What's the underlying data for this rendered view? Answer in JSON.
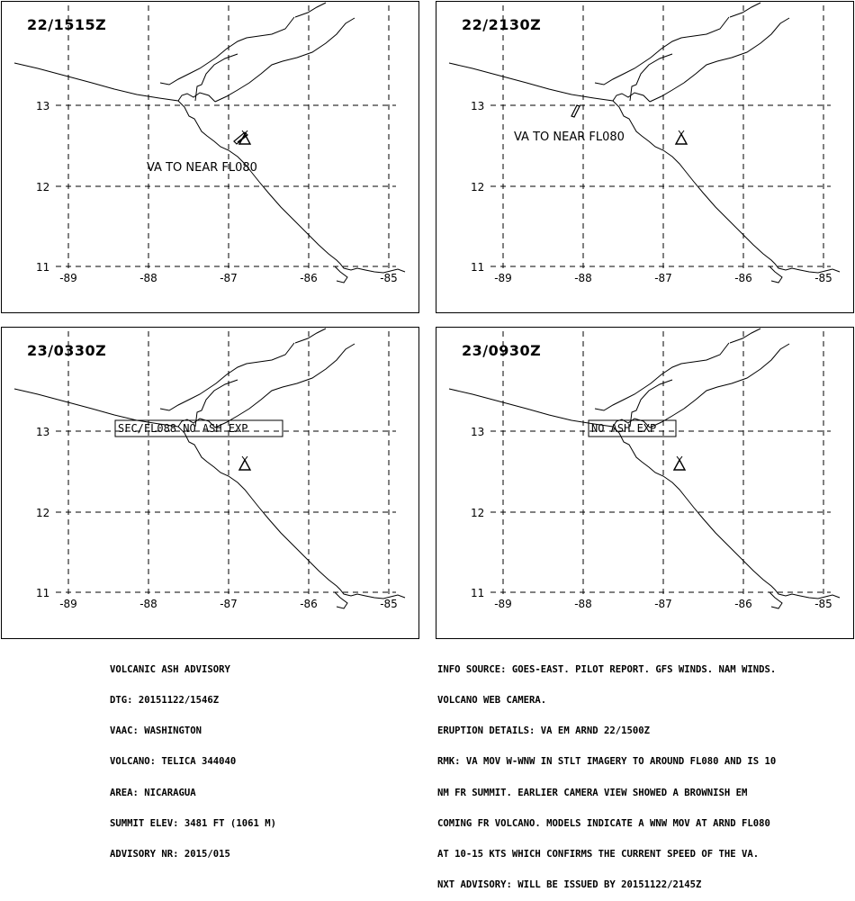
{
  "panels": [
    {
      "time": "22/1515Z",
      "annotation": {
        "kind": "text",
        "text": "VA TO NEAR FL080"
      },
      "ash_plume": true,
      "lat_labels": [
        "13",
        "12",
        "11"
      ],
      "lon_labels": [
        "-89",
        "-88",
        "-87",
        "-86",
        "-85"
      ]
    },
    {
      "time": "22/2130Z",
      "annotation": {
        "kind": "text",
        "text": "VA TO NEAR FL080"
      },
      "ash_plume": true,
      "lat_labels": [
        "13",
        "12",
        "11"
      ],
      "lon_labels": [
        "-89",
        "-88",
        "-87",
        "-86",
        "-85"
      ]
    },
    {
      "time": "23/0330Z",
      "annotation": {
        "kind": "box",
        "text": "SFC/FL088 NO ASH EXP"
      },
      "ash_plume": false,
      "lat_labels": [
        "13",
        "12",
        "11"
      ],
      "lon_labels": [
        "-89",
        "-88",
        "-87",
        "-86",
        "-85"
      ]
    },
    {
      "time": "23/0930Z",
      "annotation": {
        "kind": "box",
        "text": "NO ASH EXP"
      },
      "ash_plume": false,
      "lat_labels": [
        "13",
        "12",
        "11"
      ],
      "lon_labels": [
        "-89",
        "-88",
        "-87",
        "-86",
        "-85"
      ]
    }
  ],
  "volcano_symbol": "volcano-triangle-icon",
  "advisory_left": [
    "VOLCANIC ASH ADVISORY",
    "DTG: 20151122/1546Z",
    "VAAC: WASHINGTON",
    "VOLCANO: TELICA 344040",
    "AREA: NICARAGUA",
    "SUMMIT ELEV: 3481 FT (1061 M)",
    "ADVISORY NR: 2015/015"
  ],
  "advisory_right": [
    "INFO SOURCE: GOES-EAST. PILOT REPORT. GFS WINDS. NAM WINDS.",
    "VOLCANO WEB CAMERA.",
    "ERUPTION DETAILS: VA EM ARND 22/1500Z",
    "RMK: VA MOV W-WNW IN STLT IMAGERY TO AROUND FL080 AND IS 10",
    "NM FR SUMMIT. EARLIER CAMERA VIEW SHOWED A BROWNISH EM",
    "COMING FR VOLCANO. MODELS INDICATE A WNW MOV AT ARND FL080",
    "AT 10-15 KTS WHICH CONFIRMS THE CURRENT SPEED OF THE VA.",
    "NXT ADVISORY: WILL BE ISSUED BY 20151122/2145Z"
  ]
}
